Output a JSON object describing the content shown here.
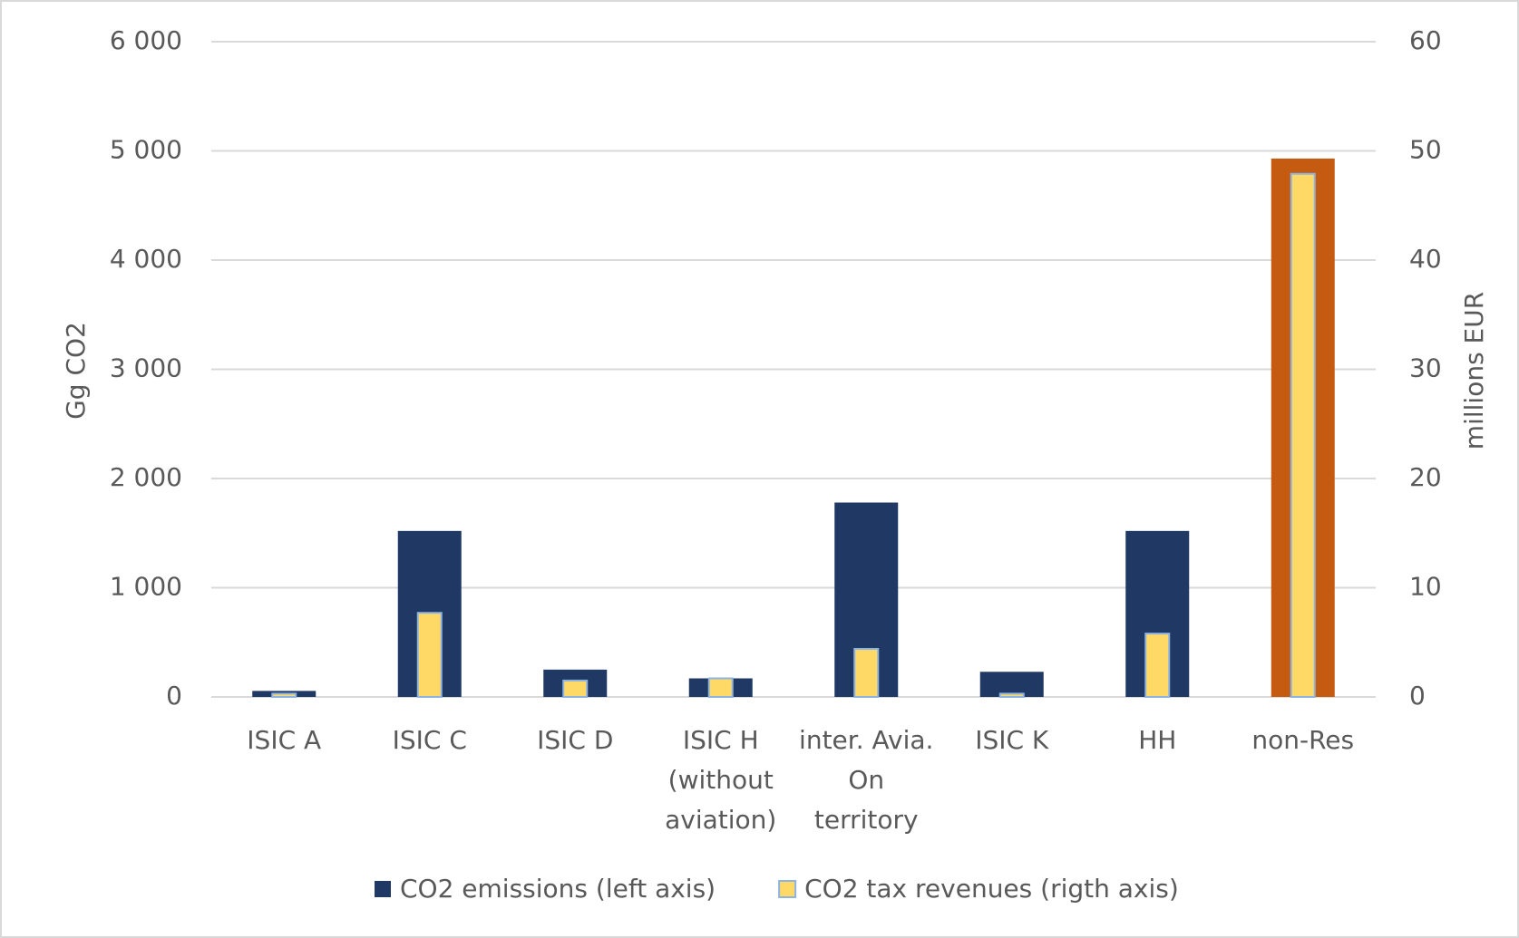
{
  "chart_data": {
    "type": "bar",
    "categories": [
      "ISIC A",
      "ISIC C",
      "ISIC D",
      "ISIC H (without aviation)",
      "inter. Avia. On territory",
      "ISIC K",
      "HH",
      "non-Res"
    ],
    "series": [
      {
        "name": "CO2 emissions (left axis)",
        "color": "#1f3864",
        "colors": [
          "#1f3864",
          "#1f3864",
          "#1f3864",
          "#1f3864",
          "#1f3864",
          "#1f3864",
          "#1f3864",
          "#c55a11"
        ],
        "values": [
          55,
          1520,
          250,
          170,
          1780,
          230,
          1520,
          4930
        ]
      },
      {
        "name": "CO2 tax revenues (rigth axis)",
        "color": "#ffd966",
        "axis": "y2",
        "values": [
          0.3,
          7.7,
          1.5,
          1.7,
          4.4,
          0.3,
          5.8,
          47.9
        ]
      }
    ],
    "ylabel": "Gg CO2",
    "y2label": "millions EUR",
    "ylim": [
      0,
      6000
    ],
    "yticks": [
      0,
      {
        "value": 1000,
        "label": "1 000"
      },
      {
        "value": 2000,
        "label": "2 000"
      },
      {
        "value": 3000,
        "label": "3 000"
      },
      {
        "value": 4000,
        "label": "4 000"
      },
      {
        "value": 5000,
        "label": "5 000"
      },
      {
        "value": 6000,
        "label": "6 000"
      }
    ],
    "y2lim": [
      0,
      60
    ],
    "y2ticks": [
      0,
      10,
      20,
      30,
      40,
      50,
      60
    ],
    "grid": true,
    "legend": "bottom"
  }
}
